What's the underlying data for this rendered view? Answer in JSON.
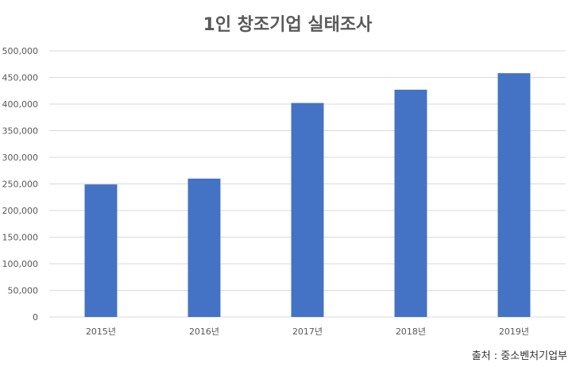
{
  "chart_data": {
    "type": "bar",
    "title": "1인 창조기업 실태조사",
    "categories": [
      "2015년",
      "2016년",
      "2017년",
      "2018년",
      "2019년"
    ],
    "values": [
      249000,
      260000,
      402000,
      427000,
      458000
    ],
    "ylim": [
      0,
      500000
    ],
    "yticks": [
      "0",
      "50,000",
      "100,000",
      "150,000",
      "200,000",
      "250,000",
      "300,000",
      "350,000",
      "400,000",
      "450,000",
      "500,000"
    ],
    "xlabel": "",
    "ylabel": "",
    "grid": true,
    "legend": "none",
    "bar_color": "#4472c4"
  },
  "source": "출처 : 중소벤처기업부"
}
